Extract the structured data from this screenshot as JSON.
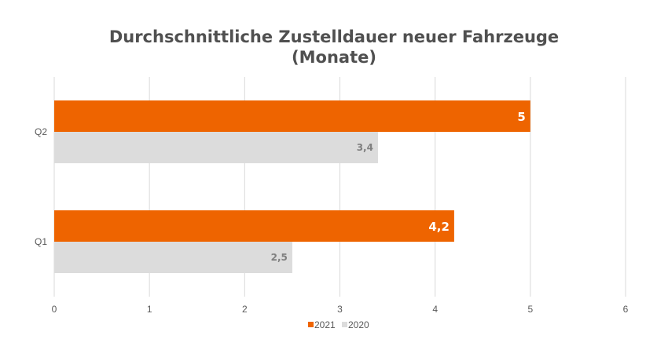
{
  "chart_data": {
    "type": "bar",
    "orientation": "horizontal",
    "title_lines": [
      "Durchschnittliche Zustelldauer neuer Fahrzeuge",
      "(Monate)"
    ],
    "categories": [
      "Q2",
      "Q1"
    ],
    "series": [
      {
        "name": "2021",
        "values": [
          5,
          4.2
        ],
        "labels": [
          "5",
          "4,2"
        ],
        "color": "#ee6400"
      },
      {
        "name": "2020",
        "values": [
          3.4,
          2.5
        ],
        "labels": [
          "3,4",
          "2,5"
        ],
        "color": "#dcdcdc"
      }
    ],
    "xlim": [
      0,
      6
    ],
    "xticks": [
      "0",
      "1",
      "2",
      "3",
      "4",
      "5",
      "6"
    ],
    "grid": true,
    "legend_position": "bottom"
  }
}
